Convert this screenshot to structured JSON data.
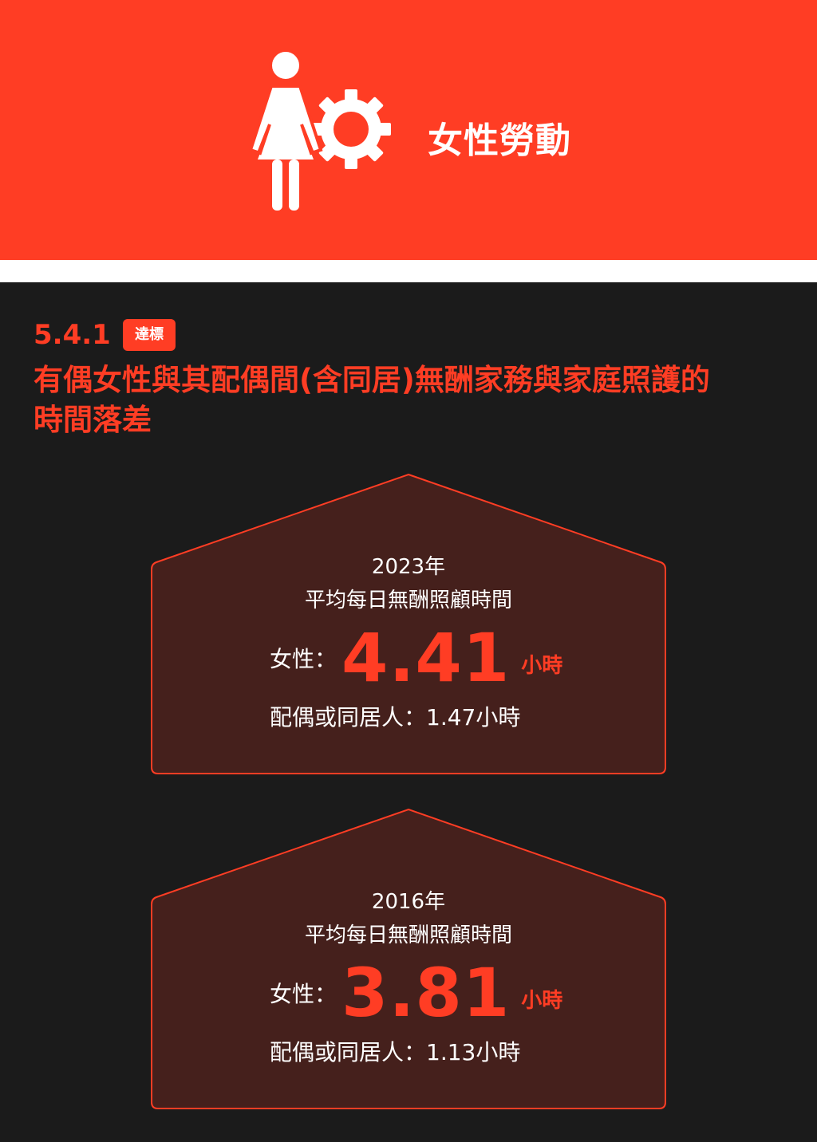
{
  "header": {
    "title": "女性勞動",
    "icon": "woman-gear-icon",
    "background_color": "#ff3d24"
  },
  "section": {
    "number": "5.4.1",
    "badge": "達標",
    "title_line1": "有偶女性與其配偶間(含同居)無酬家務與家庭照護的",
    "title_line2": "時間落差"
  },
  "cards": [
    {
      "year": "2023年",
      "subtitle": "平均每日無酬照顧時間",
      "women_label": "女性：",
      "women_value": "4.41",
      "women_unit": "小時",
      "spouse_text": "配偶或同居人：1.47小時"
    },
    {
      "year": "2016年",
      "subtitle": "平均每日無酬照顧時間",
      "women_label": "女性：",
      "women_value": "3.81",
      "women_unit": "小時",
      "spouse_text": "配偶或同居人：1.13小時"
    }
  ],
  "colors": {
    "accent": "#ff3d24",
    "dark_bg": "#1b1b1b",
    "card_fill": "#45201c"
  }
}
